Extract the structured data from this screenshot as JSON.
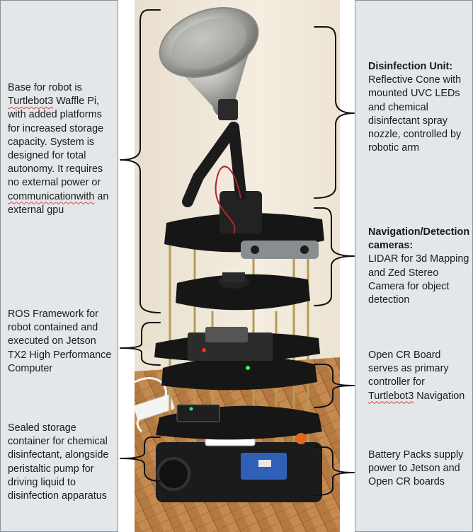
{
  "annotations": {
    "base": {
      "pre": "Base for robot is ",
      "highlight": "Turtlebot3",
      "mid": " Waffle Pi, with added platforms for increased storage capacity. System is designed for total autonomy. It requires no external power or ",
      "highlight2": "communicationwith",
      "post": " an external gpu"
    },
    "ros": {
      "text": "ROS Framework for robot contained and executed on Jetson TX2 High Performance Computer"
    },
    "storage": {
      "text": "Sealed storage container for chemical disinfectant, alongside peristaltic pump for driving liquid to disinfection apparatus"
    },
    "disinfection": {
      "title": "Disinfection Unit:",
      "text": "Reflective Cone with mounted UVC LEDs and chemical disinfectant spray nozzle, controlled by robotic arm"
    },
    "navigation": {
      "title": "Navigation/Detection cameras:",
      "text": "LIDAR for 3d Mapping and Zed Stereo Camera for object detection"
    },
    "opencr": {
      "pre": "Open CR Board serves as primary controller for ",
      "highlight": "Turtlebot3",
      "post": " Navigation"
    },
    "battery": {
      "text": "Battery Packs supply power to Jetson and Open CR boards"
    }
  },
  "colors": {
    "panel_bg": "#e3e7ea",
    "panel_border": "#8a9196",
    "bracket": "#111111",
    "spellcheck": "#e04040",
    "wall": "#f1e9da",
    "floor": "#b77b43",
    "cone": "#c9c9c6",
    "robot": "#1b1b1b",
    "rod": "#b89a55"
  }
}
